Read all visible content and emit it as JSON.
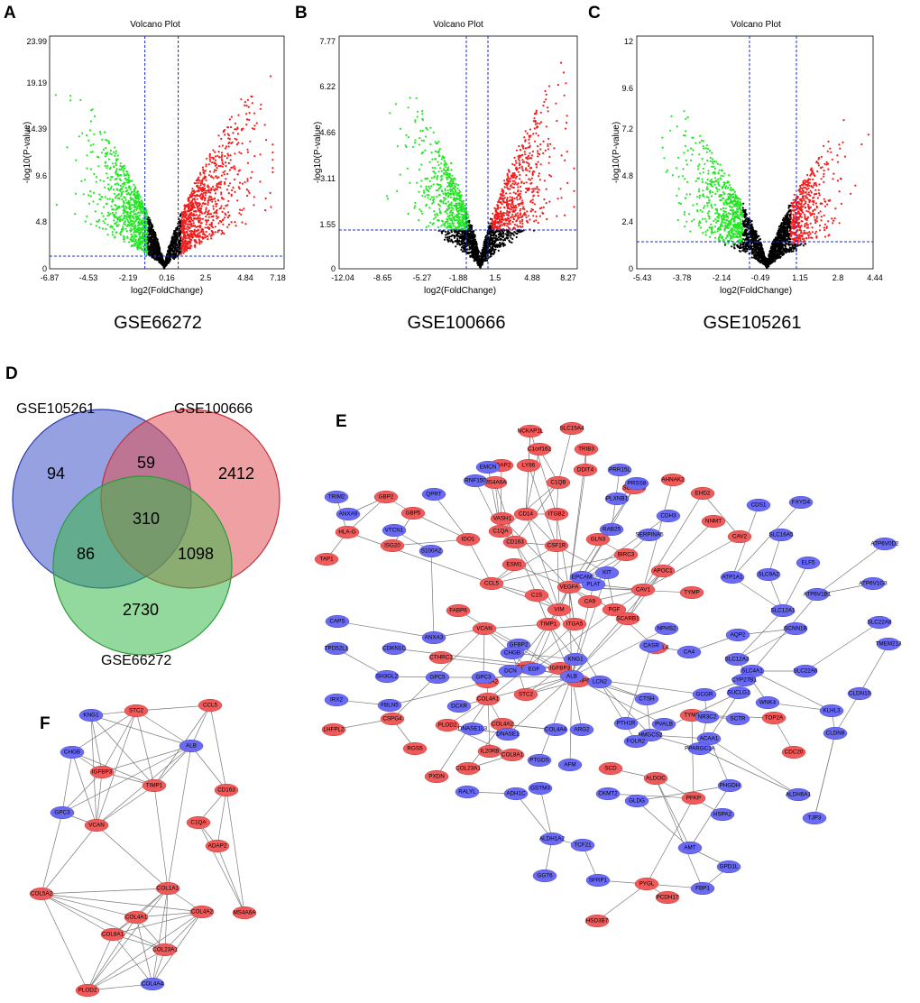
{
  "colors": {
    "up": "#f21d1d",
    "down": "#22e622",
    "ns": "#000000",
    "threshold": "#1a2bd6",
    "venn_a": "#3f53c9",
    "venn_b": "#e05256",
    "venn_c": "#3bb84a",
    "node_up": "#ef5a5a",
    "node_down": "#6a6af2",
    "edge": "#7a7a7a"
  },
  "chart_data": [
    {
      "panel": "A",
      "type": "scatter",
      "title": "Volcano Plot",
      "dataset": "GSE66272",
      "xlabel": "log2(FoldChange)",
      "ylabel": "-log10(P-value)",
      "xlim": [
        -6.87,
        7.18
      ],
      "ylim": [
        0,
        23.99
      ],
      "xticks": [
        "-6.87",
        "-4.53",
        "-2.19",
        "0.16",
        "2.5",
        "4.84",
        "7.18"
      ],
      "yticks": [
        "0",
        "4.8",
        "9.6",
        "14.39",
        "19.19",
        "23.99"
      ],
      "fc_threshold": 1,
      "p_threshold_y": 1.3,
      "ymax_data": 22.5,
      "spread": 4.1,
      "xext": 6.5,
      "series": [
        {
          "name": "up",
          "color": "#f21d1d"
        },
        {
          "name": "down",
          "color": "#22e622"
        },
        {
          "name": "not significant",
          "color": "#000000"
        }
      ]
    },
    {
      "panel": "B",
      "type": "scatter",
      "title": "Volcano Plot",
      "dataset": "GSE100666",
      "xlabel": "log2(FoldChange)",
      "ylabel": "-log10(P-value)",
      "xlim": [
        -12.04,
        8.27
      ],
      "ylim": [
        0,
        7.77
      ],
      "xticks": [
        "-12.04",
        "-8.65",
        "-5.27",
        "-1.88",
        "1.5",
        "4.88",
        "8.27"
      ],
      "yticks": [
        "0",
        "1.55",
        "3.11",
        "4.66",
        "6.22",
        "7.77"
      ],
      "fc_threshold": 1,
      "p_threshold_y": 1.3,
      "ymax_data": 7.6,
      "spread": 5.0,
      "xext": 8.0,
      "series": [
        {
          "name": "up",
          "color": "#f21d1d"
        },
        {
          "name": "down",
          "color": "#22e622"
        },
        {
          "name": "not significant",
          "color": "#000000"
        }
      ]
    },
    {
      "panel": "C",
      "type": "scatter",
      "title": "Volcano Plot",
      "dataset": "GSE105261",
      "xlabel": "log2(FoldChange)",
      "ylabel": "-log10(P-value)",
      "xlim": [
        -5.43,
        4.44
      ],
      "ylim": [
        0,
        12
      ],
      "xticks": [
        "-5.43",
        "-3.78",
        "-2.14",
        "-0.49",
        "1.15",
        "2.8",
        "4.44"
      ],
      "yticks": [
        "0",
        "2.4",
        "4.8",
        "7.2",
        "9.6",
        "12"
      ],
      "fc_threshold": 1,
      "p_threshold_y": 1.3,
      "ymax_data": 10.3,
      "spread": 3.3,
      "xext": 4.8,
      "series": [
        {
          "name": "up",
          "color": "#f21d1d"
        },
        {
          "name": "down",
          "color": "#22e622"
        },
        {
          "name": "not significant",
          "color": "#000000"
        }
      ]
    },
    {
      "panel": "D",
      "type": "venn",
      "sets": [
        "GSE105261",
        "GSE100666",
        "GSE66272"
      ],
      "regions": {
        "only_a": 94,
        "only_b": 2412,
        "only_c": 2730,
        "a_b": 59,
        "a_c": 86,
        "b_c": 1098,
        "a_b_c": 310
      }
    }
  ],
  "network_e": {
    "panel": "E",
    "up": [
      "NCKAP1L",
      "SLC15A4",
      "TRIB3",
      "C1orf162",
      "DDIT4",
      "ADAP2",
      "LY86",
      "MS4A6A",
      "C1QB",
      "SEMA5B",
      "AHNAK2",
      "EHD2",
      "GBP2",
      "GBP5",
      "HLA-G",
      "VASH1",
      "C1QA",
      "CD14",
      "ITGB2",
      "NNMT",
      "CAV2",
      "TAP1",
      "ISG20",
      "IDO1",
      "ESM1",
      "CD163",
      "CSF1R",
      "GLN3",
      "BIRC3",
      "APOC1",
      "CCL5",
      "C1S",
      "VEGFA",
      "CAV1",
      "TYMP",
      "VIM",
      "CA9",
      "FABP6",
      "PGF",
      "SCARB1",
      "VCAN",
      "TIMP1",
      "ITGA5",
      "ANGPTL4",
      "CTHRC1",
      "COL1A1",
      "IGFBP3",
      "TNFAIP6",
      "COL5A2",
      "COL4A1",
      "STC2",
      "TYMS",
      "TOP2A",
      "LHFPL2",
      "CSPG4",
      "PLOD2",
      "COL4A2",
      "RGS5",
      "IL20RB",
      "COL8A1",
      "CDC20",
      "PXDN",
      "COL23A1",
      "SCD",
      "ALDOC",
      "PFKP",
      "PYGL",
      "PCDH17",
      "HSD3B7"
    ],
    "down": [
      "EMCN",
      "PRR15L",
      "TRIM2",
      "ANXA9",
      "QPRT",
      "RNF150",
      "PLXNB1",
      "CDH3",
      "PRSS8",
      "RAB25",
      "FXYD4",
      "CDS1",
      "VTCN1",
      "S100A2",
      "SERPINA5",
      "SLC16A5",
      "ATP6V0D2",
      "EPCAM",
      "ELF5",
      "ATP1A1",
      "SLC9A2",
      "KIT",
      "PLAT",
      "ATP6V1G3",
      "CAPS",
      "ATP6V1B1",
      "SLC12A1",
      "NPHS2",
      "SLC22A8",
      "TPD52L1",
      "CDKN1C",
      "ANXA3",
      "CASR",
      "GFBP2",
      "CA4",
      "AQP2",
      "SCNN1B",
      "TMEM213",
      "CHGB",
      "SLC12A3",
      "KNG1",
      "SLC4A1",
      "SLC22A6",
      "SH3GL2",
      "GPC5",
      "GPC3",
      "DCN",
      "EGF",
      "ALB",
      "LCN2",
      "CYP27B1",
      "CLDN10",
      "IRX2",
      "CTSH",
      "GCGR",
      "SUCLG1",
      "FBLN5",
      "WNK4",
      "KLHL3",
      "DCXR",
      "NR3C2",
      "SCTR",
      "PTH1R",
      "HMGCS2",
      "PVALB",
      "DNASE1L3",
      "COL4A4",
      "ARG2",
      "DNASE1",
      "ACAA1",
      "CLDN8",
      "FOLR2",
      "PPARGC1A",
      "PTGDS",
      "AFM",
      "GSTM3",
      "PHGDH",
      "RALYL",
      "ADH1C",
      "CKMT2",
      "ALDH6A1",
      "GLDG",
      "HSPA2",
      "TJP3",
      "ALDH1A2",
      "TCF21",
      "AMT",
      "GPD1L",
      "GGT6",
      "SFRP1",
      "FBP1"
    ]
  },
  "network_f": {
    "panel": "F",
    "up": [
      "STC2",
      "CCL5",
      "IGFBP3",
      "TIMP1",
      "CD163",
      "VCAN",
      "C1QA",
      "ADAP2",
      "COL1A1",
      "COL4A1",
      "COL4A2",
      "COL5A2",
      "COL8A1",
      "COL23A1",
      "MS4A6A",
      "PLOD2"
    ],
    "down": [
      "KNG1",
      "CHGB",
      "ALB",
      "GPC3",
      "COL4A4"
    ]
  }
}
